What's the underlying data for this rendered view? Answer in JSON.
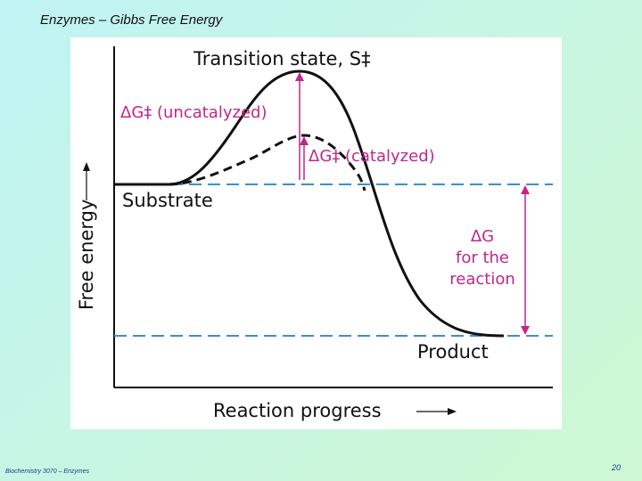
{
  "slide": {
    "title": "Enzymes – Gibbs Free Energy",
    "footer_course": "Biochemistry 3070 – Enzymes",
    "page_number": "20"
  },
  "diagram": {
    "transition_state_label": "Transition state, S‡",
    "uncatalyzed_label": "ΔG‡ (uncatalyzed)",
    "catalyzed_label": "ΔG‡ (catalyzed)",
    "substrate_label": "Substrate",
    "product_label": "Product",
    "delta_g_label_line1": "ΔG",
    "delta_g_label_line2": "for the",
    "delta_g_label_line3": "reaction",
    "y_axis_label": "Free energy",
    "x_axis_label": "Reaction progress",
    "colors": {
      "curve": "#111111",
      "arrows": "#c0278a",
      "reference_lines": "#3a8fd0",
      "axis": "#111111"
    }
  }
}
